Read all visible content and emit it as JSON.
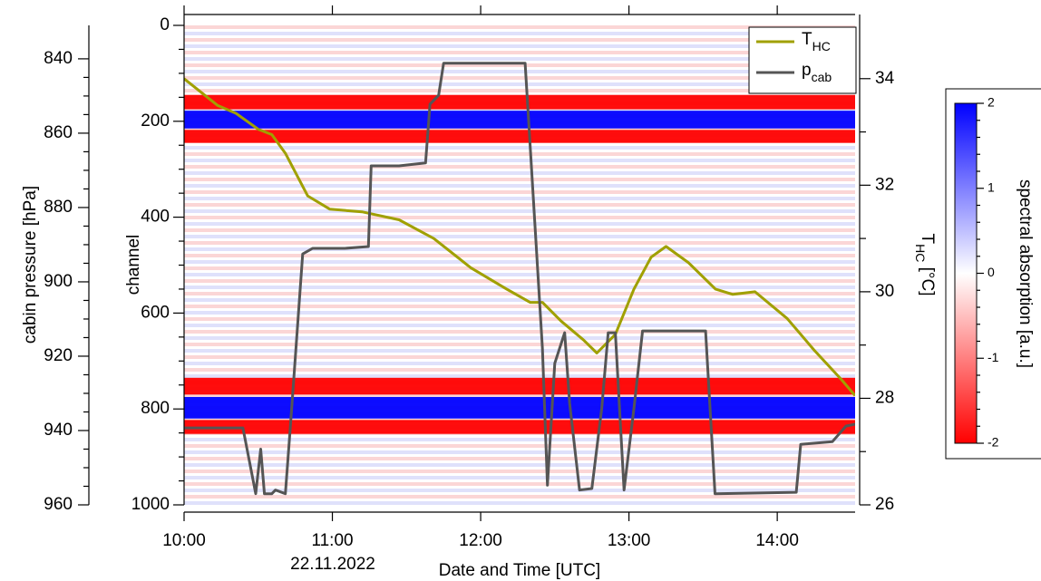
{
  "chart_data": {
    "type": "heatmap-lines",
    "xlabel": "Date and Time [UTC]",
    "date_label": "22.11.2022",
    "ylabel": "cabin pressure [hPa]",
    "channel_label": "channel",
    "y2label": {
      "text": "T",
      "sub": "HC",
      "unit": " [°C]"
    },
    "xlim": [
      600,
      871.5
    ],
    "xticks": [
      {
        "value": 600,
        "label": "10:00"
      },
      {
        "value": 660,
        "label": "11:00"
      },
      {
        "value": 720,
        "label": "12:00"
      },
      {
        "value": 780,
        "label": "13:00"
      },
      {
        "value": 840,
        "label": "14:00"
      }
    ],
    "ylim": [
      831,
      960
    ],
    "yticks": [
      840,
      860,
      880,
      900,
      920,
      940,
      960
    ],
    "channel_lim": [
      0,
      1000
    ],
    "channel_ticks": [
      0,
      200,
      400,
      600,
      800,
      1000
    ],
    "y2lim": [
      26,
      35
    ],
    "y2ticks": [
      26,
      28,
      30,
      32,
      34
    ],
    "heatmap": [
      {
        "channel_from": 145,
        "channel_to": 175,
        "value": -2
      },
      {
        "channel_from": 178,
        "channel_to": 215,
        "value": 2
      },
      {
        "channel_from": 218,
        "channel_to": 245,
        "value": -2
      },
      {
        "channel_from": 735,
        "channel_to": 770,
        "value": -2
      },
      {
        "channel_from": 775,
        "channel_to": 820,
        "value": 2
      },
      {
        "channel_from": 823,
        "channel_to": 852,
        "value": -2
      }
    ],
    "colorbar": {
      "label": "spectral absorption [a.u.]",
      "lim": [
        -2,
        2
      ],
      "ticks": [
        2,
        1,
        0,
        -1,
        -2
      ],
      "colors": [
        "#ff0000",
        "#ffffff",
        "#0000ff"
      ]
    },
    "series": [
      {
        "name": "T",
        "name_sub": "HC",
        "axis": "y2",
        "color": "#a0a000",
        "x": [
          600,
          613.5,
          621,
          630,
          635.5,
          641,
          650,
          659,
          672,
          687,
          701,
          716,
          730.5,
          740,
          745,
          752.5,
          761.5,
          767,
          774.5,
          782,
          789,
          795,
          804,
          815,
          822,
          831,
          844,
          855,
          866,
          871.5
        ],
        "values": [
          34.0,
          33.5,
          33.35,
          33.05,
          32.95,
          32.6,
          31.8,
          31.55,
          31.5,
          31.35,
          31.0,
          30.45,
          30.05,
          29.8,
          29.8,
          29.45,
          29.1,
          28.85,
          29.2,
          30.05,
          30.65,
          30.85,
          30.55,
          30.05,
          29.95,
          30.0,
          29.5,
          28.9,
          28.35,
          28.05
        ]
      },
      {
        "name": "p",
        "name_sub": "cab",
        "axis": "y",
        "color": "#555555",
        "x": [
          600,
          623.8,
          629,
          631,
          632.5,
          635.5,
          637,
          641,
          643,
          648,
          652,
          665,
          674.6,
          675.7,
          687,
          697.7,
          699.5,
          703,
          705,
          738,
          740,
          745,
          747,
          750,
          754,
          756,
          760,
          765,
          769,
          771.6,
          774.5,
          778,
          782,
          785.5,
          811,
          814.8,
          847.7,
          849.5,
          862.3,
          867.8,
          871.5
        ],
        "values": [
          939.3,
          939.3,
          957,
          945,
          957,
          957,
          956,
          957,
          939,
          892.5,
          891,
          891,
          890.5,
          868.8,
          868.8,
          868,
          852.2,
          849.8,
          841.2,
          841.2,
          863.2,
          918,
          954.7,
          921.9,
          913.7,
          932.7,
          956,
          955.6,
          934,
          913.7,
          913.7,
          956,
          934,
          913.2,
          913.2,
          957,
          956.6,
          943.7,
          943,
          938.8,
          938.3
        ]
      }
    ]
  }
}
